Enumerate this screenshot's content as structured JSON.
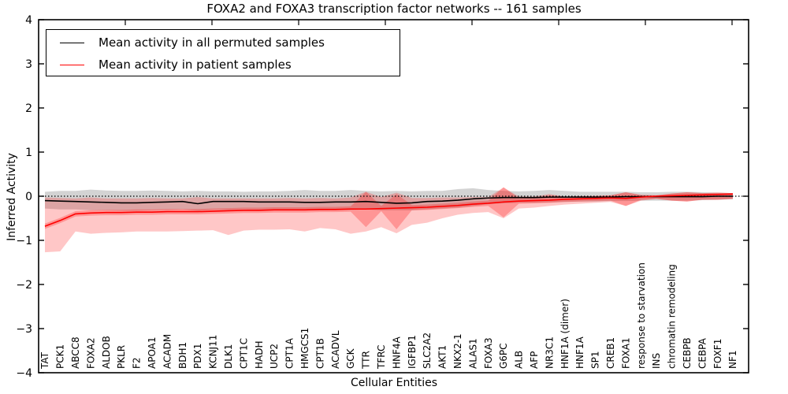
{
  "title": "FOXA2 and FOXA3 transcription factor networks -- 161 samples",
  "legend": {
    "items": [
      {
        "label": "Mean activity in all permuted samples",
        "color": "#000000"
      },
      {
        "label": "Mean activity in patient samples",
        "color": "#ff0000"
      }
    ],
    "position": "upper left"
  },
  "chart_data": {
    "type": "line",
    "title": "FOXA2 and FOXA3 transcription factor networks -- 161 samples",
    "xlabel": "Cellular Entities",
    "ylabel": "Inferred Activity",
    "ylim": [
      -4,
      4
    ],
    "ytick_values": [
      4,
      3,
      2,
      1,
      0,
      -1,
      -2,
      -3,
      -4
    ],
    "ytick_labels": [
      "4",
      "3",
      "2",
      "1",
      "0",
      "−1",
      "−2",
      "−3",
      "−4"
    ],
    "grid": false,
    "zero_line": {
      "value": 0,
      "style": "dotted",
      "color": "#000000"
    },
    "legend_position": "upper left",
    "categories": [
      "TAT",
      "PCK1",
      "ABCC8",
      "FOXA2",
      "ALDOB",
      "PKLR",
      "F2",
      "APOA1",
      "ACADM",
      "BDH1",
      "PDX1",
      "KCNJ11",
      "DLK1",
      "CPT1C",
      "HADH",
      "UCP2",
      "CPT1A",
      "HMGCS1",
      "CPT1B",
      "ACADVL",
      "GCK",
      "TTR",
      "TFRC",
      "HNF4A",
      "IGFBP1",
      "SLC2A2",
      "AKT1",
      "NKX2-1",
      "ALAS1",
      "FOXA3",
      "G6PC",
      "ALB",
      "AFP",
      "NR3C1",
      "HNF1A (dimer)",
      "HNF1A",
      "SP1",
      "CREB1",
      "FOXA1",
      "response to starvation",
      "INS",
      "chromatin remodeling",
      "CEBPB",
      "CEBPA",
      "FOXF1",
      "NF1"
    ],
    "series": [
      {
        "name": "Mean activity in all permuted samples",
        "color": "#000000",
        "width": 1.6,
        "values": [
          -0.1,
          -0.11,
          -0.12,
          -0.13,
          -0.14,
          -0.15,
          -0.15,
          -0.14,
          -0.13,
          -0.12,
          -0.17,
          -0.12,
          -0.12,
          -0.12,
          -0.13,
          -0.13,
          -0.13,
          -0.14,
          -0.14,
          -0.13,
          -0.13,
          -0.12,
          -0.14,
          -0.16,
          -0.15,
          -0.12,
          -0.11,
          -0.09,
          -0.06,
          -0.04,
          -0.03,
          -0.03,
          -0.03,
          -0.02,
          -0.02,
          -0.02,
          -0.02,
          -0.02,
          -0.01,
          -0.01,
          -0.01,
          -0.01,
          -0.01,
          -0.01,
          0.0,
          0.0
        ]
      },
      {
        "name": "Mean activity in patient samples",
        "color": "#ff0000",
        "width": 1.6,
        "values": [
          -0.68,
          -0.55,
          -0.4,
          -0.38,
          -0.37,
          -0.37,
          -0.36,
          -0.36,
          -0.35,
          -0.35,
          -0.35,
          -0.34,
          -0.33,
          -0.32,
          -0.32,
          -0.31,
          -0.31,
          -0.31,
          -0.3,
          -0.3,
          -0.29,
          -0.29,
          -0.28,
          -0.27,
          -0.26,
          -0.25,
          -0.23,
          -0.21,
          -0.18,
          -0.16,
          -0.13,
          -0.11,
          -0.1,
          -0.09,
          -0.07,
          -0.06,
          -0.05,
          -0.04,
          -0.05,
          -0.02,
          0.0,
          0.01,
          0.02,
          0.03,
          0.04,
          0.05
        ]
      }
    ],
    "bands": [
      {
        "name": "permuted-band",
        "color": "#808080",
        "opacity": 0.35,
        "upper": [
          0.1,
          0.12,
          0.12,
          0.15,
          0.13,
          0.12,
          0.12,
          0.13,
          0.12,
          0.11,
          0.12,
          0.11,
          0.11,
          0.1,
          0.11,
          0.11,
          0.12,
          0.14,
          0.12,
          0.12,
          0.14,
          0.12,
          0.11,
          0.12,
          0.11,
          0.12,
          0.12,
          0.16,
          0.18,
          0.14,
          0.12,
          0.11,
          0.12,
          0.14,
          0.12,
          0.1,
          0.1,
          0.1,
          0.1,
          0.09,
          0.09,
          0.1,
          0.1,
          0.09,
          0.08,
          0.07
        ],
        "lower": [
          -0.28,
          -0.3,
          -0.3,
          -0.32,
          -0.32,
          -0.33,
          -0.33,
          -0.32,
          -0.31,
          -0.3,
          -0.33,
          -0.31,
          -0.31,
          -0.3,
          -0.31,
          -0.31,
          -0.31,
          -0.32,
          -0.32,
          -0.31,
          -0.31,
          -0.3,
          -0.32,
          -0.32,
          -0.32,
          -0.3,
          -0.28,
          -0.26,
          -0.22,
          -0.18,
          -0.16,
          -0.15,
          -0.15,
          -0.14,
          -0.13,
          -0.12,
          -0.12,
          -0.11,
          -0.11,
          -0.1,
          -0.1,
          -0.1,
          -0.1,
          -0.09,
          -0.08,
          -0.07
        ]
      },
      {
        "name": "patient-band-outer",
        "color": "#ff0000",
        "opacity": 0.22,
        "upper": [
          -0.03,
          -0.04,
          -0.05,
          -0.03,
          -0.05,
          -0.05,
          -0.05,
          -0.04,
          -0.05,
          -0.05,
          -0.02,
          -0.05,
          -0.05,
          -0.05,
          -0.05,
          -0.05,
          -0.04,
          -0.05,
          -0.04,
          -0.05,
          -0.03,
          0.1,
          -0.02,
          0.08,
          -0.04,
          -0.04,
          -0.03,
          -0.03,
          -0.02,
          -0.02,
          0.2,
          -0.01,
          -0.01,
          0.05,
          -0.01,
          0.0,
          0.0,
          0.02,
          0.09,
          0.03,
          0.02,
          0.06,
          0.09,
          0.07,
          0.08,
          0.07
        ],
        "lower": [
          -1.27,
          -1.25,
          -0.8,
          -0.85,
          -0.83,
          -0.82,
          -0.8,
          -0.8,
          -0.8,
          -0.79,
          -0.78,
          -0.77,
          -0.88,
          -0.78,
          -0.76,
          -0.76,
          -0.75,
          -0.8,
          -0.72,
          -0.75,
          -0.85,
          -0.8,
          -0.7,
          -0.84,
          -0.65,
          -0.6,
          -0.5,
          -0.42,
          -0.38,
          -0.36,
          -0.5,
          -0.28,
          -0.26,
          -0.22,
          -0.19,
          -0.17,
          -0.15,
          -0.13,
          -0.22,
          -0.1,
          -0.06,
          -0.1,
          -0.12,
          -0.08,
          -0.08,
          -0.06
        ]
      },
      {
        "name": "patient-band-inner",
        "color": "#ff0000",
        "opacity": 0.25,
        "upper": [
          -0.62,
          -0.49,
          -0.34,
          -0.32,
          -0.31,
          -0.31,
          -0.3,
          -0.3,
          -0.29,
          -0.29,
          -0.29,
          -0.28,
          -0.27,
          -0.26,
          -0.26,
          -0.25,
          -0.25,
          -0.25,
          -0.24,
          -0.24,
          -0.23,
          0.1,
          -0.22,
          0.05,
          -0.2,
          -0.19,
          -0.17,
          -0.15,
          -0.12,
          -0.1,
          0.2,
          -0.05,
          -0.04,
          0.02,
          -0.01,
          0.0,
          0.01,
          0.02,
          0.09,
          0.03,
          0.02,
          0.06,
          0.09,
          0.07,
          0.08,
          0.07
        ],
        "lower": [
          -0.74,
          -0.61,
          -0.46,
          -0.44,
          -0.43,
          -0.43,
          -0.42,
          -0.42,
          -0.41,
          -0.41,
          -0.41,
          -0.4,
          -0.39,
          -0.38,
          -0.38,
          -0.37,
          -0.37,
          -0.37,
          -0.36,
          -0.36,
          -0.35,
          -0.7,
          -0.34,
          -0.75,
          -0.32,
          -0.31,
          -0.29,
          -0.27,
          -0.24,
          -0.22,
          -0.48,
          -0.17,
          -0.16,
          -0.15,
          -0.13,
          -0.12,
          -0.11,
          -0.1,
          -0.22,
          -0.08,
          -0.06,
          -0.1,
          -0.12,
          -0.08,
          -0.08,
          -0.06
        ]
      }
    ]
  }
}
